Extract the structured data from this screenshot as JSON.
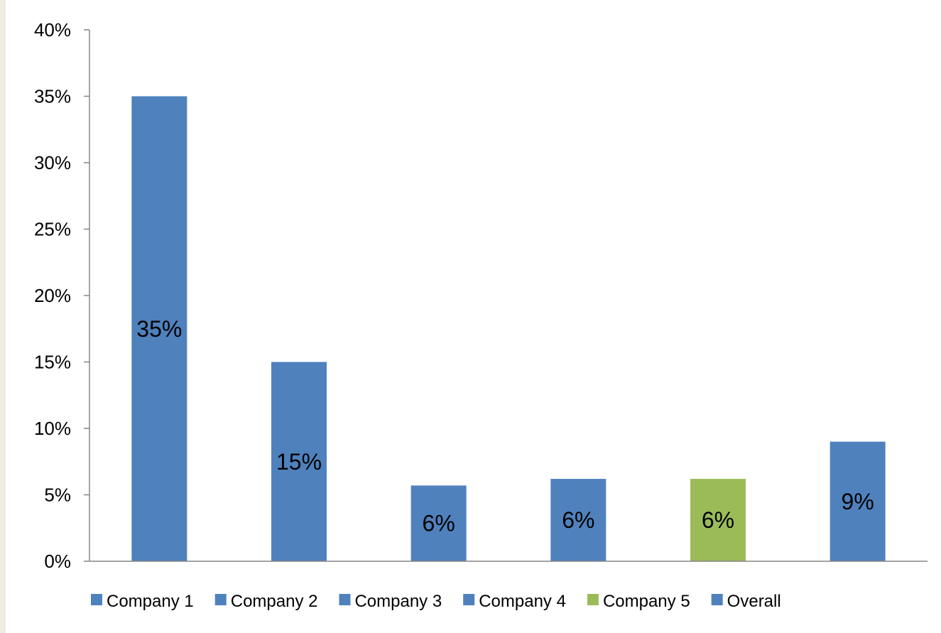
{
  "chart_data": {
    "type": "bar",
    "categories": [
      "Company 1",
      "Company 2",
      "Company 3",
      "Company 4",
      "Company 5",
      "Overall"
    ],
    "values": [
      35,
      15,
      5.7,
      6.2,
      6.2,
      9
    ],
    "data_labels": [
      "35%",
      "15%",
      "6%",
      "6%",
      "6%",
      "9%"
    ],
    "colors": [
      "#4f81bd",
      "#4f81bd",
      "#4f81bd",
      "#4f81bd",
      "#9bbb59",
      "#4f81bd"
    ],
    "title": "",
    "xlabel": "",
    "ylabel": "",
    "ylim": [
      0,
      40
    ],
    "y_ticks": [
      0,
      5,
      10,
      15,
      20,
      25,
      30,
      35,
      40
    ],
    "y_tick_labels": [
      "0%",
      "5%",
      "10%",
      "15%",
      "20%",
      "25%",
      "30%",
      "35%",
      "40%"
    ],
    "grid": false,
    "legend_position": "bottom"
  }
}
